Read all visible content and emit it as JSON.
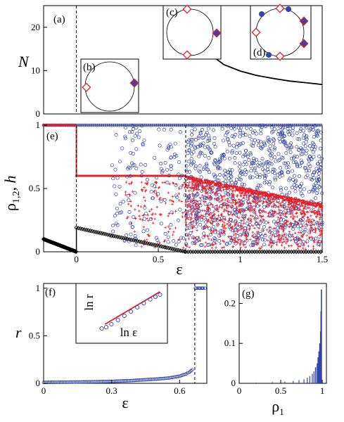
{
  "chart_data": [
    {
      "panel": "(a)",
      "type": "line",
      "xlabel": "",
      "ylabel": "N",
      "xlim": [
        -0.2,
        1.5
      ],
      "ylim": [
        0,
        25
      ],
      "yticks": [
        "0",
        "10",
        "20"
      ],
      "series": [
        {
          "x": [
            0.667,
            0.7,
            0.75,
            0.8,
            0.9,
            1.0,
            1.1,
            1.2,
            1.3,
            1.4,
            1.5
          ],
          "y": [
            27.0,
            22.0,
            17.0,
            14.2,
            11.4,
            9.9,
            8.9,
            8.2,
            7.6,
            7.2,
            6.8
          ]
        }
      ],
      "vline_x": 0,
      "insets": [
        {
          "label": "(b)",
          "open_diamonds": 1,
          "filled": 1
        },
        {
          "label": "(c)",
          "open_diamonds": 2,
          "filled": 1
        },
        {
          "label": "(d)",
          "open_diamonds": 4,
          "filled": 4
        }
      ]
    },
    {
      "panel": "(e)",
      "type": "scatter",
      "xlabel": "ε",
      "ylabel": "ρ",
      "ylabel_sub": "1,2",
      "ylabel_tail": ", h",
      "xlim": [
        -0.2,
        1.5
      ],
      "ylim": [
        0,
        1
      ],
      "xticks": [
        "0",
        "0.5",
        "1",
        "1.5"
      ],
      "yticks": [
        "0",
        "0.5",
        "1"
      ],
      "vlines": [
        0,
        0.667
      ],
      "series": [
        {
          "color": "#3344aa",
          "marker": "open-circle",
          "desc_points": [
            [
              -0.2,
              1
            ],
            [
              0,
              1
            ],
            [
              0.3,
              1
            ],
            [
              0.667,
              1
            ],
            [
              1.5,
              1
            ]
          ]
        },
        {
          "color": "#e8202a",
          "marker": "plus",
          "desc_points": [
            [
              -0.2,
              1
            ],
            [
              0,
              1
            ],
            [
              0,
              0.6
            ],
            [
              0.667,
              0.6
            ],
            [
              1.0,
              0.5
            ],
            [
              1.5,
              0.38
            ]
          ]
        },
        {
          "color": "#000000",
          "marker": "diamond",
          "x": [
            -0.2,
            -0.1,
            0.0,
            0.0,
            0.2,
            0.4,
            0.6,
            0.667,
            1.5
          ],
          "y": [
            0.1,
            0.05,
            0.0,
            0.19,
            0.13,
            0.08,
            0.02,
            0.0,
            0.0
          ]
        }
      ]
    },
    {
      "panel": "(f)",
      "type": "scatter",
      "xlabel": "ε",
      "ylabel": "r",
      "xlim": [
        0,
        0.72
      ],
      "ylim": [
        0,
        1.05
      ],
      "xticks": [
        "0",
        "0.3",
        "0.6"
      ],
      "yticks": [
        "0",
        "0.5",
        "1"
      ],
      "vline_x": 0.667,
      "series": [
        {
          "color": "#3344aa",
          "marker": "open-circle",
          "x": [
            0.0,
            0.1,
            0.2,
            0.3,
            0.4,
            0.5,
            0.55,
            0.6,
            0.63,
            0.65,
            0.66,
            0.67,
            0.69,
            0.71
          ],
          "y": [
            0.01,
            0.012,
            0.015,
            0.02,
            0.03,
            0.045,
            0.055,
            0.075,
            0.1,
            0.13,
            0.15,
            1.0,
            1.0,
            1.0
          ]
        }
      ],
      "inset": {
        "xlabel": "ln ε",
        "ylabel": "ln r",
        "red_line": [
          [
            0.1,
            0.15
          ],
          [
            0.95,
            0.92
          ]
        ],
        "points": [
          [
            0.05,
            0.05
          ],
          [
            0.12,
            0.08
          ],
          [
            0.2,
            0.15
          ],
          [
            0.3,
            0.25
          ],
          [
            0.4,
            0.35
          ],
          [
            0.5,
            0.45
          ],
          [
            0.6,
            0.55
          ],
          [
            0.7,
            0.65
          ],
          [
            0.8,
            0.74
          ],
          [
            0.88,
            0.8
          ],
          [
            0.95,
            0.85
          ]
        ]
      }
    },
    {
      "panel": "(g)",
      "type": "bar",
      "xlabel": "ρ",
      "xlabel_sub": "1",
      "ylabel": "",
      "xlim": [
        0,
        1.05
      ],
      "ylim": [
        0,
        0.25
      ],
      "xticks": [
        "0",
        "0.5",
        "1"
      ],
      "yticks": [
        "0",
        "0.1",
        "0.2"
      ],
      "bars": {
        "x": [
          0.2,
          0.4,
          0.55,
          0.65,
          0.72,
          0.78,
          0.82,
          0.85,
          0.88,
          0.9,
          0.92,
          0.94,
          0.95,
          0.96,
          0.97,
          0.98,
          0.985,
          0.99
        ],
        "y": [
          0.002,
          0.003,
          0.004,
          0.006,
          0.008,
          0.01,
          0.014,
          0.018,
          0.024,
          0.03,
          0.04,
          0.05,
          0.065,
          0.08,
          0.1,
          0.13,
          0.18,
          0.235
        ]
      }
    }
  ]
}
